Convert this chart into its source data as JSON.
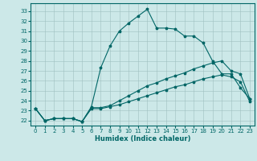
{
  "xlabel": "Humidex (Indice chaleur)",
  "bg_color": "#cce8e8",
  "line_color": "#006666",
  "xlim": [
    -0.5,
    23.5
  ],
  "ylim": [
    21.5,
    33.8
  ],
  "yticks": [
    22,
    23,
    24,
    25,
    26,
    27,
    28,
    29,
    30,
    31,
    32,
    33
  ],
  "xticks": [
    0,
    1,
    2,
    3,
    4,
    5,
    6,
    7,
    8,
    9,
    10,
    11,
    12,
    13,
    14,
    15,
    16,
    17,
    18,
    19,
    20,
    21,
    22,
    23
  ],
  "line1_x": [
    0,
    1,
    2,
    3,
    4,
    5,
    6,
    7,
    8,
    9,
    10,
    11,
    12,
    13,
    14,
    15,
    16,
    17,
    18,
    19,
    20,
    21,
    22,
    23
  ],
  "line1_y": [
    23.2,
    22.0,
    22.2,
    22.2,
    22.2,
    21.9,
    23.4,
    27.3,
    29.5,
    31.0,
    31.8,
    32.5,
    33.2,
    31.3,
    31.3,
    31.2,
    30.5,
    30.5,
    29.8,
    28.0,
    26.7,
    26.7,
    25.3,
    24.2
  ],
  "line2_x": [
    0,
    1,
    2,
    3,
    4,
    5,
    6,
    7,
    8,
    9,
    10,
    11,
    12,
    13,
    14,
    15,
    16,
    17,
    18,
    19,
    20,
    21,
    22,
    23
  ],
  "line2_y": [
    23.2,
    22.0,
    22.2,
    22.2,
    22.2,
    21.9,
    23.3,
    23.3,
    23.5,
    24.0,
    24.5,
    25.0,
    25.5,
    25.8,
    26.2,
    26.5,
    26.8,
    27.2,
    27.5,
    27.8,
    28.0,
    27.0,
    26.7,
    24.2
  ],
  "line3_x": [
    0,
    1,
    2,
    3,
    4,
    5,
    6,
    7,
    8,
    9,
    10,
    11,
    12,
    13,
    14,
    15,
    16,
    17,
    18,
    19,
    20,
    21,
    22,
    23
  ],
  "line3_y": [
    23.2,
    22.0,
    22.2,
    22.2,
    22.2,
    21.9,
    23.2,
    23.2,
    23.4,
    23.6,
    23.9,
    24.2,
    24.5,
    24.8,
    25.1,
    25.4,
    25.6,
    25.9,
    26.2,
    26.4,
    26.6,
    26.4,
    25.9,
    23.9
  ],
  "marker_size": 2.5,
  "line_width": 0.8,
  "xlabel_fontsize": 6,
  "tick_fontsize": 5
}
